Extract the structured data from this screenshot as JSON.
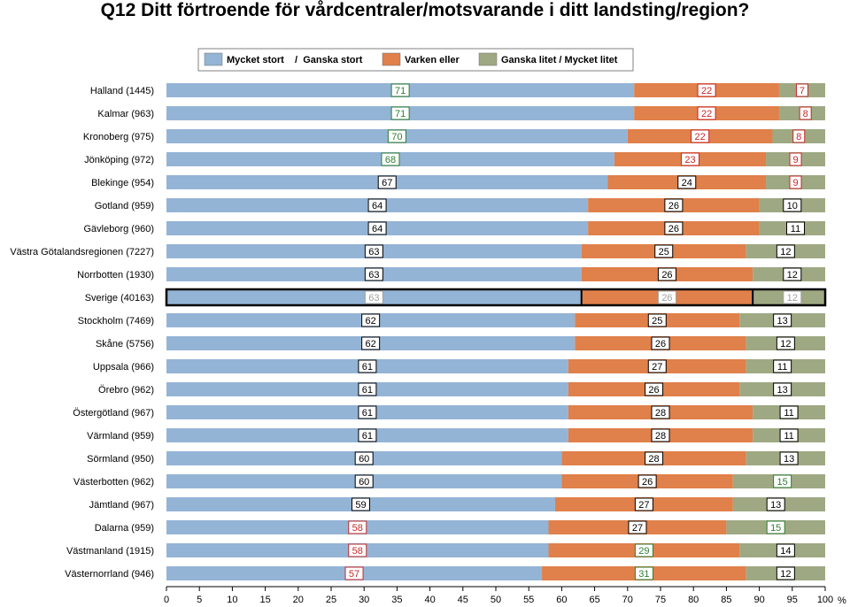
{
  "title": "Q12 Ditt förtroende för vårdcentraler/motsvarande i ditt landsting/region?",
  "chart_data": {
    "type": "bar",
    "orientation": "horizontal",
    "stacked": true,
    "title": "Q12 Ditt förtroende för vårdcentraler/motsvarande i ditt landsting/region?",
    "xlabel": "%",
    "ylabel": "",
    "xlim": [
      0,
      100
    ],
    "xticks": [
      "0",
      "5",
      "10",
      "15",
      "20",
      "25",
      "30",
      "35",
      "40",
      "45",
      "50",
      "55",
      "60",
      "65",
      "70",
      "75",
      "80",
      "85",
      "90",
      "95",
      "100"
    ],
    "legend_position": "top",
    "grid": false,
    "highlighted_category": "Sverige (40163)",
    "categories": [
      "Halland (1445)",
      "Kalmar (963)",
      "Kronoberg (975)",
      "Jönköping (972)",
      "Blekinge (954)",
      "Gotland (959)",
      "Gävleborg (960)",
      "Västra Götalandsregionen (7227)",
      "Norrbotten (1930)",
      "Sverige (40163)",
      "Stockholm (7469)",
      "Skåne (5756)",
      "Uppsala (966)",
      "Örebro (962)",
      "Östergötland (967)",
      "Värmland (959)",
      "Sörmland (950)",
      "Västerbotten (962)",
      "Jämtland (967)",
      "Dalarna (959)",
      "Västmanland (1915)",
      "Västernorrland (946)"
    ],
    "series": [
      {
        "name": "Mycket stort / Ganska stort",
        "color": "#94b4d6",
        "values": [
          71,
          71,
          70,
          68,
          67,
          64,
          64,
          63,
          63,
          63,
          62,
          62,
          61,
          61,
          61,
          61,
          60,
          60,
          59,
          58,
          58,
          57
        ]
      },
      {
        "name": "Varken eller",
        "color": "#e0804a",
        "values": [
          22,
          22,
          22,
          23,
          24,
          26,
          26,
          25,
          26,
          26,
          25,
          26,
          27,
          26,
          28,
          28,
          28,
          26,
          27,
          27,
          29,
          31
        ]
      },
      {
        "name": "Ganska litet / Mycket litet",
        "color": "#9ea983",
        "values": [
          7,
          8,
          8,
          9,
          9,
          10,
          11,
          12,
          12,
          12,
          13,
          12,
          11,
          13,
          11,
          11,
          13,
          15,
          13,
          15,
          14,
          12
        ]
      }
    ],
    "label_colors": [
      [
        "green",
        "red",
        "red"
      ],
      [
        "green",
        "red",
        "red"
      ],
      [
        "green",
        "red",
        "red"
      ],
      [
        "green",
        "red",
        "red"
      ],
      [
        "black",
        "black",
        "red"
      ],
      [
        "black",
        "black",
        "black"
      ],
      [
        "black",
        "black",
        "black"
      ],
      [
        "black",
        "black",
        "black"
      ],
      [
        "black",
        "black",
        "black"
      ],
      [
        "gray",
        "gray",
        "gray"
      ],
      [
        "black",
        "black",
        "black"
      ],
      [
        "black",
        "black",
        "black"
      ],
      [
        "black",
        "black",
        "black"
      ],
      [
        "black",
        "black",
        "black"
      ],
      [
        "black",
        "black",
        "black"
      ],
      [
        "black",
        "black",
        "black"
      ],
      [
        "black",
        "black",
        "black"
      ],
      [
        "black",
        "black",
        "green"
      ],
      [
        "black",
        "black",
        "black"
      ],
      [
        "red",
        "black",
        "green"
      ],
      [
        "red",
        "green",
        "black"
      ],
      [
        "red",
        "green",
        "black"
      ]
    ]
  },
  "legend": {
    "items": [
      {
        "label": "Mycket stort    /  Ganska stort",
        "color": "#94b4d6"
      },
      {
        "label": "Varken eller",
        "color": "#e0804a"
      },
      {
        "label": "Ganska litet / Mycket litet",
        "color": "#9ea983"
      }
    ]
  },
  "colors": {
    "text_green": "#2e7d32",
    "text_red": "#c62828",
    "text_black": "#000000",
    "text_gray": "#a0a0a0",
    "highlight_border": "#000000"
  }
}
